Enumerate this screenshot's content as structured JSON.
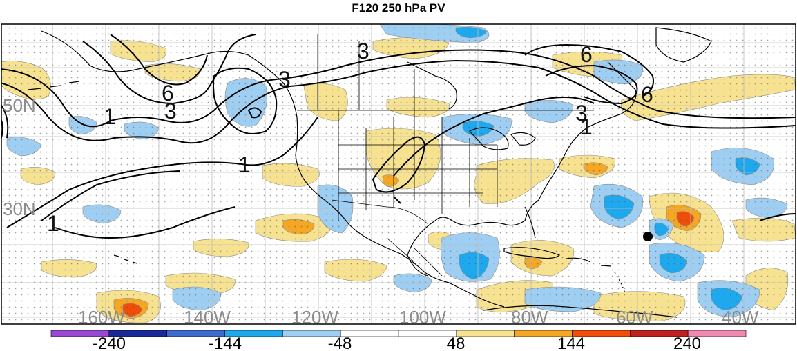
{
  "title": "F120 250 hPa PV",
  "latitude_labels": [
    "50N",
    "30N"
  ],
  "longitude_labels": [
    "160W",
    "140W",
    "120W",
    "100W",
    "80W",
    "60W",
    "40W"
  ],
  "contour_labels": {
    "one": "1",
    "three": "3",
    "six": "6"
  },
  "colorbar": {
    "colors": [
      "#9b47d6",
      "#1a2a9a",
      "#3b6ad0",
      "#1ea9ee",
      "#9ecef2",
      "#ffffff",
      "#ffffff",
      "#f6e290",
      "#f5a623",
      "#f04c0a",
      "#c02020",
      "#f08ab0"
    ],
    "labels": [
      "-240",
      "-144",
      "-48",
      "48",
      "144",
      "240"
    ]
  }
}
